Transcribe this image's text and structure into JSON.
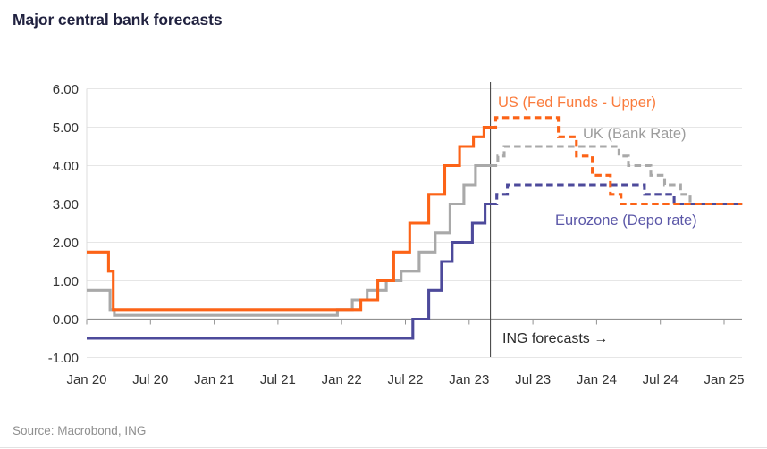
{
  "header": {
    "title": "Major central bank forecasts"
  },
  "footer": {
    "source": "Source: Macrobond, ING"
  },
  "chart_data": {
    "type": "line",
    "title": "Major central bank forecasts",
    "subtitle": "",
    "x_unit": "months since Jan 2020",
    "x_ticks": [
      "Jan 20",
      "Jul 20",
      "Jan 21",
      "Jul 21",
      "Jan 22",
      "Jul 22",
      "Jan 23",
      "Jul 23",
      "Jan 24",
      "Jul 24",
      "Jan 25"
    ],
    "x_tick_months": [
      0,
      6,
      12,
      18,
      24,
      30,
      36,
      42,
      48,
      54,
      60
    ],
    "y_ticks": [
      "6.00",
      "5.00",
      "4.00",
      "3.00",
      "2.00",
      "1.00",
      "0.00",
      "-1.00"
    ],
    "y_tick_values": [
      6,
      5,
      4,
      3,
      2,
      1,
      0,
      -1
    ],
    "ylim": [
      -1.0,
      6.0
    ],
    "x_range_months": [
      0,
      61.7
    ],
    "grid": "horizontal",
    "legend_position": "inline-labels",
    "forecast_line_month": 38.0,
    "annotation": "ING forecasts →",
    "end_month": 61.7,
    "colors": {
      "us": "#fc6317",
      "uk": "#a9a9a9",
      "eurozone": "#4d4a9b",
      "gridline": "#e6e6e6",
      "zero_axis": "#919191",
      "forecast_line": "#4b4b4b"
    },
    "series": [
      {
        "id": "uk",
        "name": "UK (Bank Rate)",
        "color": "#a9a9a9",
        "history": [
          [
            0,
            0.75
          ],
          [
            2.2,
            0.25
          ],
          [
            2.6,
            0.1
          ],
          [
            23.6,
            0.25
          ],
          [
            25.0,
            0.5
          ],
          [
            26.4,
            0.75
          ],
          [
            28.2,
            1.0
          ],
          [
            29.6,
            1.25
          ],
          [
            31.3,
            1.75
          ],
          [
            32.8,
            2.25
          ],
          [
            34.2,
            3.0
          ],
          [
            35.5,
            3.5
          ],
          [
            36.6,
            4.0
          ]
        ],
        "forecast": [
          [
            38.0,
            4.0
          ],
          [
            38.7,
            4.25
          ],
          [
            39.3,
            4.5
          ],
          [
            50.1,
            4.25
          ],
          [
            51.0,
            4.0
          ],
          [
            53.1,
            3.75
          ],
          [
            54.4,
            3.5
          ],
          [
            55.9,
            3.25
          ],
          [
            56.8,
            3.0
          ]
        ]
      },
      {
        "id": "eurozone",
        "name": "Eurozone (Depo rate)",
        "color": "#4d4a9b",
        "history": [
          [
            0,
            -0.5
          ],
          [
            30.7,
            0.0
          ],
          [
            32.2,
            0.75
          ],
          [
            33.4,
            1.5
          ],
          [
            34.4,
            2.0
          ],
          [
            36.3,
            2.5
          ],
          [
            37.5,
            3.0
          ]
        ],
        "forecast": [
          [
            38.0,
            3.0
          ],
          [
            38.6,
            3.25
          ],
          [
            39.6,
            3.5
          ],
          [
            52.5,
            3.25
          ],
          [
            55.3,
            3.0
          ]
        ]
      },
      {
        "id": "us",
        "name": "US (Fed Funds - Upper)",
        "color": "#fc6317",
        "history": [
          [
            0,
            1.75
          ],
          [
            2.05,
            1.25
          ],
          [
            2.5,
            0.25
          ],
          [
            25.8,
            0.5
          ],
          [
            27.4,
            1.0
          ],
          [
            28.9,
            1.75
          ],
          [
            30.4,
            2.5
          ],
          [
            32.2,
            3.25
          ],
          [
            33.7,
            4.0
          ],
          [
            35.1,
            4.5
          ],
          [
            36.4,
            4.75
          ],
          [
            37.4,
            5.0
          ]
        ],
        "forecast": [
          [
            38.0,
            5.0
          ],
          [
            38.5,
            5.25
          ],
          [
            44.4,
            4.75
          ],
          [
            46.1,
            4.25
          ],
          [
            47.6,
            3.75
          ],
          [
            49.3,
            3.25
          ],
          [
            50.3,
            3.0
          ]
        ]
      }
    ]
  }
}
